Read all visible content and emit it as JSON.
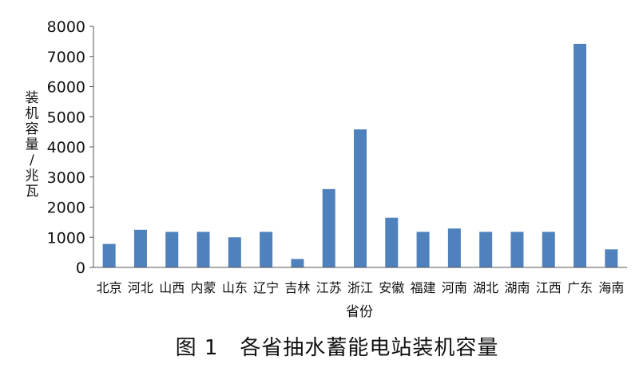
{
  "chart_data": {
    "type": "bar",
    "categories": [
      "北京",
      "河北",
      "山西",
      "内蒙",
      "山东",
      "辽宁",
      "吉林",
      "江苏",
      "浙江",
      "安徽",
      "福建",
      "河南",
      "湖北",
      "湖南",
      "江西",
      "广东",
      "海南"
    ],
    "values": [
      780,
      1250,
      1180,
      1180,
      1000,
      1180,
      280,
      2600,
      4580,
      1650,
      1180,
      1290,
      1180,
      1180,
      1180,
      7420,
      600
    ],
    "xlabel": "省份",
    "ylabel": "装机容量/兆瓦",
    "ylim": [
      0,
      8000
    ],
    "yticks": [
      0,
      1000,
      2000,
      3000,
      4000,
      5000,
      6000,
      7000,
      8000
    ],
    "bar_color": "#4f81bd",
    "grid": false,
    "legend": "none"
  },
  "caption": "图 1　各省抽水蓄能电站装机容量"
}
